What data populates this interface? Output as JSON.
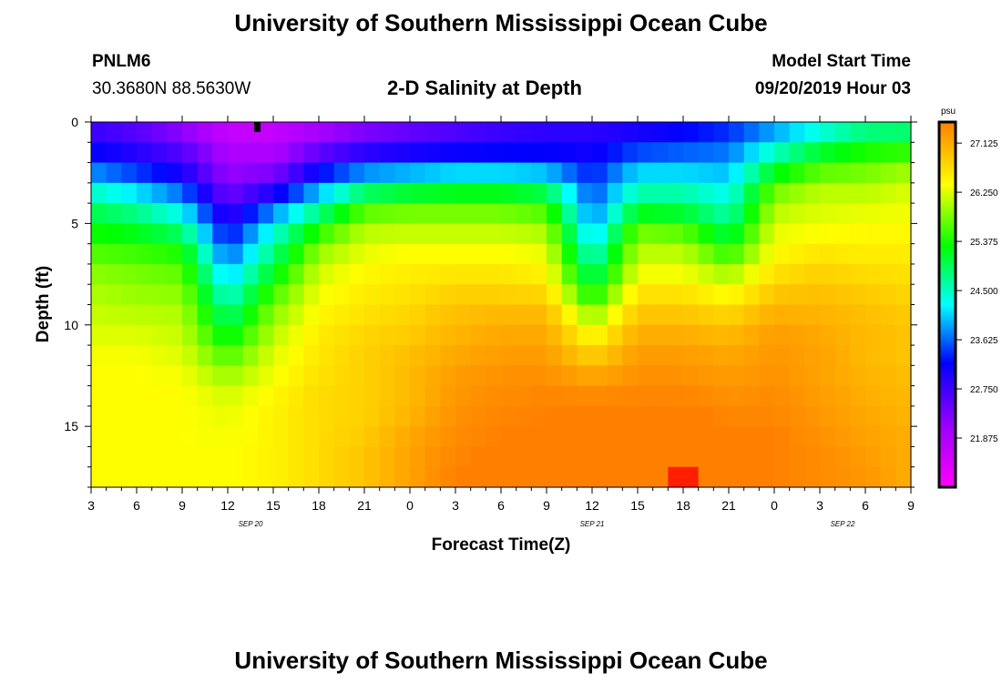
{
  "header": {
    "title_top": "University of Southern Mississippi Ocean Cube",
    "title_bottom": "University of Southern Mississippi Ocean Cube",
    "station_id": "PNLM6",
    "coordinates": "30.3680N 88.5630W",
    "model_start_label": "Model Start Time",
    "model_start_value": "09/20/2019 Hour 03"
  },
  "chart_data": {
    "type": "heatmap",
    "title": "2-D Salinity at Depth",
    "xlabel": "Forecast Time(Z)",
    "ylabel": "Depth (ft)",
    "x_tick_labels": [
      "3",
      "6",
      "9",
      "12",
      "15",
      "18",
      "21",
      "0",
      "3",
      "6",
      "9",
      "12",
      "15",
      "18",
      "21",
      "0",
      "3",
      "6",
      "9"
    ],
    "x_range_hours_from_start": [
      0,
      54
    ],
    "y_tick_labels": [
      "0",
      "5",
      "10",
      "15"
    ],
    "y_tick_values": [
      0,
      5,
      10,
      15
    ],
    "ylim": [
      0,
      18
    ],
    "date_labels": [
      {
        "label": "SEP 20",
        "hour": 10.5
      },
      {
        "label": "SEP 21",
        "hour": 33
      },
      {
        "label": "SEP 22",
        "hour": 49.5
      }
    ],
    "colorbar": {
      "unit": "psu",
      "min": 21,
      "max": 27.5,
      "tick_labels": [
        "27.125",
        "26.250",
        "25.375",
        "24.500",
        "23.625",
        "22.750",
        "21.875"
      ],
      "tick_values": [
        27.125,
        26.25,
        25.375,
        24.5,
        23.625,
        22.75,
        21.875
      ]
    },
    "grid": false,
    "salinity_rows_depth_ft": [
      0,
      1,
      2,
      3,
      4,
      5,
      6,
      7,
      8,
      9,
      10,
      11,
      12,
      13,
      14,
      15,
      16,
      17,
      18
    ],
    "salinity_cols_hours": [
      0,
      3,
      6,
      9,
      12,
      15,
      18,
      21,
      24,
      27,
      30,
      33,
      36,
      39,
      42,
      45,
      48,
      51,
      54
    ],
    "salinity_matrix_psu": [
      [
        22.6,
        22.4,
        22.0,
        21.5,
        21.5,
        21.8,
        22.0,
        22.2,
        22.4,
        22.6,
        22.8,
        22.8,
        22.9,
        23.0,
        23.2,
        23.6,
        24.0,
        24.4,
        24.5
      ],
      [
        23.0,
        22.8,
        22.4,
        21.8,
        21.8,
        22.2,
        22.6,
        22.8,
        22.9,
        23.0,
        23.0,
        23.0,
        23.2,
        23.4,
        23.6,
        24.2,
        24.8,
        25.2,
        25.2
      ],
      [
        23.4,
        23.1,
        22.8,
        22.0,
        22.0,
        22.8,
        23.2,
        23.3,
        23.4,
        23.4,
        23.4,
        23.2,
        23.8,
        23.8,
        23.8,
        24.8,
        25.4,
        25.6,
        25.8
      ],
      [
        24.2,
        23.8,
        23.3,
        22.2,
        22.6,
        23.6,
        24.4,
        24.6,
        24.8,
        24.8,
        24.6,
        23.4,
        24.4,
        24.4,
        24.2,
        25.6,
        26.0,
        26.0,
        26.2
      ],
      [
        24.8,
        24.5,
        24.0,
        22.6,
        23.4,
        24.4,
        25.4,
        25.6,
        25.6,
        25.6,
        25.4,
        23.6,
        24.8,
        24.8,
        24.4,
        26.0,
        26.2,
        26.2,
        26.3
      ],
      [
        25.2,
        25.0,
        24.6,
        23.0,
        24.2,
        25.2,
        26.0,
        26.0,
        26.0,
        26.0,
        25.9,
        23.8,
        25.6,
        25.4,
        24.8,
        26.2,
        26.3,
        26.4,
        26.4
      ],
      [
        25.5,
        25.4,
        25.2,
        23.4,
        24.6,
        25.8,
        26.2,
        26.3,
        26.3,
        26.3,
        26.2,
        24.2,
        26.0,
        26.0,
        25.2,
        26.4,
        26.5,
        26.5,
        26.5
      ],
      [
        25.8,
        25.7,
        25.6,
        23.8,
        25.0,
        26.1,
        26.4,
        26.5,
        26.5,
        26.5,
        26.4,
        24.6,
        26.2,
        26.2,
        25.8,
        26.5,
        26.7,
        26.6,
        26.6
      ],
      [
        26.0,
        25.9,
        25.8,
        24.2,
        25.4,
        26.3,
        26.5,
        26.6,
        26.7,
        26.7,
        26.6,
        25.0,
        26.5,
        26.5,
        26.2,
        26.8,
        26.9,
        26.8,
        26.7
      ],
      [
        26.1,
        26.0,
        26.0,
        24.6,
        25.8,
        26.4,
        26.6,
        26.7,
        26.9,
        26.9,
        26.9,
        25.6,
        26.8,
        26.8,
        26.6,
        27.0,
        27.0,
        26.9,
        26.8
      ],
      [
        26.2,
        26.2,
        26.1,
        25.0,
        26.0,
        26.5,
        26.7,
        26.8,
        27.0,
        27.1,
        27.1,
        26.2,
        27.0,
        27.0,
        26.9,
        27.2,
        27.1,
        27.0,
        26.9
      ],
      [
        26.3,
        26.3,
        26.2,
        25.4,
        26.2,
        26.6,
        26.8,
        26.9,
        27.1,
        27.2,
        27.2,
        26.6,
        27.2,
        27.2,
        27.1,
        27.3,
        27.2,
        27.0,
        26.9
      ],
      [
        26.4,
        26.4,
        26.3,
        25.8,
        26.3,
        26.6,
        26.8,
        27.0,
        27.2,
        27.3,
        27.3,
        27.0,
        27.3,
        27.3,
        27.2,
        27.3,
        27.2,
        27.0,
        26.9
      ],
      [
        26.4,
        26.4,
        26.4,
        26.1,
        26.4,
        26.7,
        26.8,
        27.0,
        27.3,
        27.4,
        27.4,
        27.3,
        27.4,
        27.4,
        27.3,
        27.4,
        27.2,
        27.1,
        27.0
      ],
      [
        26.4,
        26.4,
        26.4,
        26.3,
        26.5,
        26.7,
        26.8,
        27.0,
        27.3,
        27.4,
        27.5,
        27.5,
        27.5,
        27.5,
        27.4,
        27.4,
        27.3,
        27.1,
        27.0
      ],
      [
        26.4,
        26.4,
        26.4,
        26.3,
        26.5,
        26.7,
        26.8,
        27.1,
        27.4,
        27.5,
        27.5,
        27.6,
        27.6,
        27.6,
        27.5,
        27.5,
        27.3,
        27.2,
        27.1
      ],
      [
        26.4,
        26.4,
        26.4,
        26.4,
        26.5,
        26.7,
        26.9,
        27.2,
        27.4,
        27.5,
        27.6,
        27.7,
        27.6,
        27.7,
        27.6,
        27.5,
        27.4,
        27.2,
        27.1
      ],
      [
        26.4,
        26.4,
        26.4,
        26.4,
        26.5,
        26.7,
        26.9,
        27.2,
        27.5,
        27.6,
        27.6,
        27.8,
        27.7,
        27.9,
        27.6,
        27.5,
        27.4,
        27.3,
        27.1
      ],
      [
        26.4,
        26.4,
        26.4,
        26.4,
        26.5,
        26.7,
        26.9,
        27.2,
        27.5,
        27.6,
        27.6,
        27.8,
        27.7,
        27.9,
        27.6,
        27.5,
        27.4,
        27.3,
        27.1
      ]
    ]
  }
}
